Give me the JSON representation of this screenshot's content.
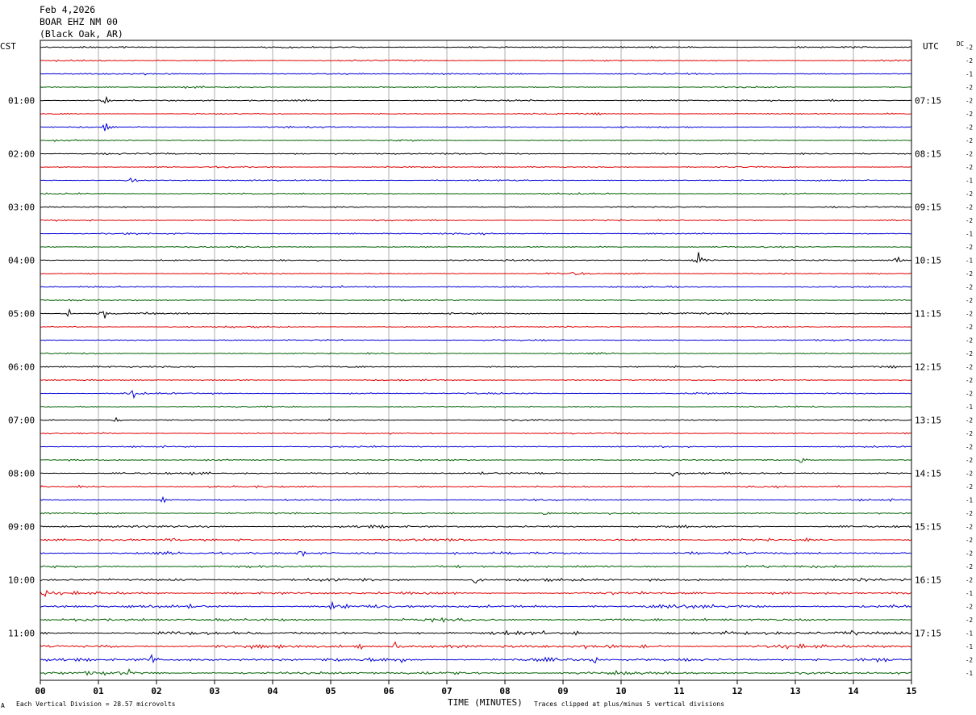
{
  "header": {
    "date": "Feb 4,2026",
    "station": "BOAR EHZ NM 00",
    "location": "(Black Oak, AR)"
  },
  "left_axis_title": "CST",
  "right_axis_title": "UTC",
  "dc_label": "DC",
  "footer": {
    "scale_note": "Each Vertical Division =   28.57 microvolts",
    "x_title": "TIME (MINUTES)",
    "clip_note": "Traces clipped at plus/minus 5 vertical divisions",
    "corner_mark": "A"
  },
  "colors": {
    "trace_cycle": [
      "#000000",
      "#e00000",
      "#0000d8",
      "#006000"
    ],
    "grid": "#9a9a9a",
    "frame": "#000000"
  },
  "chart_data": {
    "type": "line",
    "title": "Feb 4,2026",
    "xlabel": "TIME (MINUTES)",
    "xlim": [
      0,
      15
    ],
    "x_ticks": [
      "00",
      "01",
      "02",
      "03",
      "04",
      "05",
      "06",
      "07",
      "08",
      "09",
      "10",
      "11",
      "12",
      "13",
      "14",
      "15"
    ],
    "trace_count": 48,
    "minutes_per_trace": 15,
    "left_hour_labels": [
      "01:00",
      "02:00",
      "03:00",
      "04:00",
      "05:00",
      "06:00",
      "07:00",
      "08:00",
      "09:00",
      "10:00",
      "11:00"
    ],
    "right_hour_labels": [
      "07:15",
      "08:15",
      "09:15",
      "10:15",
      "11:15",
      "12:15",
      "13:15",
      "14:15",
      "15:15",
      "16:15",
      "17:15"
    ],
    "hour_label_trace_indices": [
      4,
      8,
      12,
      16,
      20,
      24,
      28,
      32,
      36,
      40,
      44
    ],
    "dc_offsets": [
      "-2",
      "-2",
      "-1",
      "-2",
      "-2",
      "-2",
      "-2",
      "-2",
      "-2",
      "-2",
      "-1",
      "-2",
      "-2",
      "-2",
      "-1",
      "-2",
      "-1",
      "-2",
      "-2",
      "-2",
      "-2",
      "-2",
      "-2",
      "-2",
      "-2",
      "-2",
      "-2",
      "-1",
      "-2",
      "-2",
      "-2",
      "-2",
      "-2",
      "-2",
      "-1",
      "-2",
      "-2",
      "-2",
      "-2",
      "-2",
      "-2",
      "-1",
      "-2",
      "-2",
      "-1",
      "-1",
      "-2",
      "-1"
    ],
    "activity_levels": [
      0.9,
      0.8,
      0.85,
      0.8,
      0.9,
      0.8,
      0.85,
      0.8,
      0.95,
      0.8,
      0.85,
      0.8,
      0.9,
      0.8,
      0.85,
      0.8,
      0.9,
      0.85,
      0.85,
      0.8,
      0.95,
      0.85,
      0.85,
      0.8,
      0.9,
      0.85,
      0.9,
      0.85,
      0.9,
      0.85,
      0.85,
      0.9,
      1.1,
      0.95,
      1.0,
      1.0,
      1.3,
      1.25,
      1.45,
      1.3,
      1.55,
      1.5,
      1.75,
      1.5,
      1.9,
      1.95,
      1.9,
      1.75
    ],
    "events": [
      {
        "trace": 4,
        "minute": 1.12,
        "amp": 7
      },
      {
        "trace": 6,
        "minute": 1.12,
        "amp": 5
      },
      {
        "trace": 10,
        "minute": 1.55,
        "amp": 5
      },
      {
        "trace": 16,
        "minute": 11.35,
        "amp": 14
      },
      {
        "trace": 16,
        "minute": 14.75,
        "amp": 5
      },
      {
        "trace": 17,
        "minute": 9.2,
        "amp": 4
      },
      {
        "trace": 20,
        "minute": 0.5,
        "amp": 5
      },
      {
        "trace": 20,
        "minute": 1.1,
        "amp": 6
      },
      {
        "trace": 26,
        "minute": 1.6,
        "amp": 8
      },
      {
        "trace": 28,
        "minute": 1.3,
        "amp": 5
      },
      {
        "trace": 31,
        "minute": 13.1,
        "amp": 5
      },
      {
        "trace": 32,
        "minute": 10.9,
        "amp": 6
      },
      {
        "trace": 34,
        "minute": 2.1,
        "amp": 4
      },
      {
        "trace": 35,
        "minute": 8.7,
        "amp": 4
      },
      {
        "trace": 37,
        "minute": 2.3,
        "amp": 5
      },
      {
        "trace": 38,
        "minute": 4.5,
        "amp": 6
      },
      {
        "trace": 40,
        "minute": 7.5,
        "amp": 6
      },
      {
        "trace": 41,
        "minute": 0.1,
        "amp": 5
      },
      {
        "trace": 42,
        "minute": 5.0,
        "amp": 6
      },
      {
        "trace": 44,
        "minute": 13.95,
        "amp": 7
      },
      {
        "trace": 45,
        "minute": 5.5,
        "amp": 6
      },
      {
        "trace": 45,
        "minute": 6.1,
        "amp": 8
      },
      {
        "trace": 46,
        "minute": 1.9,
        "amp": 7
      },
      {
        "trace": 46,
        "minute": 6.2,
        "amp": 7
      },
      {
        "trace": 46,
        "minute": 9.55,
        "amp": 5
      },
      {
        "trace": 47,
        "minute": 1.55,
        "amp": 6
      }
    ]
  }
}
